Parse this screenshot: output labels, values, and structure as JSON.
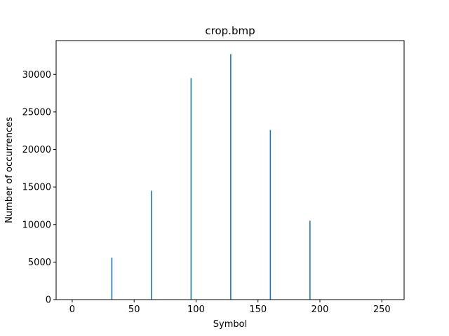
{
  "chart_data": {
    "type": "bar",
    "title": "crop.bmp",
    "xlabel": "Symbol",
    "ylabel": "Number of occurrences",
    "xlim": [
      -13,
      268
    ],
    "ylim": [
      0,
      34500
    ],
    "xticks": [
      0,
      50,
      100,
      150,
      200,
      250
    ],
    "yticks": [
      0,
      5000,
      10000,
      15000,
      20000,
      25000,
      30000
    ],
    "grid": false,
    "bar_color": "#1f77b4",
    "points": [
      {
        "x": 32,
        "y": 5600
      },
      {
        "x": 64,
        "y": 14500
      },
      {
        "x": 96,
        "y": 29500
      },
      {
        "x": 128,
        "y": 32700
      },
      {
        "x": 160,
        "y": 22600
      },
      {
        "x": 192,
        "y": 10500
      }
    ]
  }
}
